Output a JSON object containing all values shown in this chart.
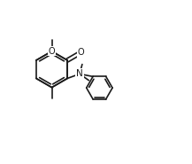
{
  "background": "#ffffff",
  "line_color": "#1a1a1a",
  "line_width": 1.2,
  "font_size": 7.0,
  "figsize": [
    2.17,
    1.85
  ],
  "dpi": 100,
  "xlim": [
    0,
    10.5
  ],
  "ylim": [
    0,
    9.0
  ]
}
